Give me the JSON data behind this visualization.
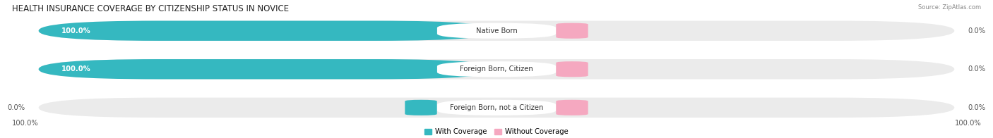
{
  "title": "HEALTH INSURANCE COVERAGE BY CITIZENSHIP STATUS IN NOVICE",
  "source": "Source: ZipAtlas.com",
  "categories": [
    "Native Born",
    "Foreign Born, Citizen",
    "Foreign Born, not a Citizen"
  ],
  "with_coverage": [
    100.0,
    100.0,
    0.0
  ],
  "without_coverage": [
    0.0,
    0.0,
    0.0
  ],
  "color_with": "#35b8c0",
  "color_without": "#f5a8c0",
  "color_bg_bar": "#ebebeb",
  "title_fontsize": 8.5,
  "label_fontsize": 7.2,
  "bar_height": 0.52,
  "figsize": [
    14.06,
    1.96
  ],
  "dpi": 100,
  "xlim": [
    -1.08,
    1.08
  ],
  "legend_label_with": "With Coverage",
  "legend_label_without": "Without Coverage"
}
